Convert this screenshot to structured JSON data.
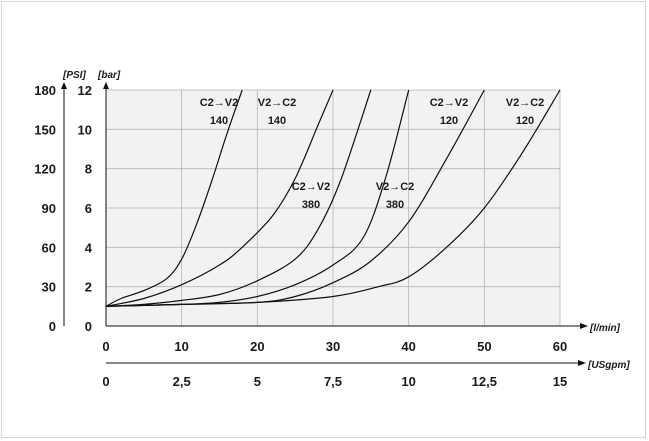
{
  "chart_data": {
    "type": "line",
    "title": "",
    "y_left_outer_label": "[PSI]",
    "y_left_outer_ticks": [
      "0",
      "30",
      "60",
      "90",
      "120",
      "150",
      "180"
    ],
    "y_left_inner_label": "[bar]",
    "y_left_inner_ticks": [
      "0",
      "2",
      "4",
      "6",
      "8",
      "10",
      "12"
    ],
    "x_primary_label": "[l/min]",
    "x_primary_ticks": [
      "0",
      "10",
      "20",
      "30",
      "40",
      "50",
      "60"
    ],
    "x_secondary_label": "[USgpm]",
    "x_secondary_ticks": [
      "0",
      "2,5",
      "5",
      "7,5",
      "10",
      "12,5",
      "15"
    ],
    "xlim": [
      0,
      60
    ],
    "ylim": [
      0,
      12
    ],
    "grid": true,
    "background": "#f2f2f2",
    "series": [
      {
        "name": "C2→V2 140",
        "line1": "C2→V2",
        "line2": "140",
        "x": [
          0,
          2,
          5,
          8,
          10,
          12,
          14,
          16,
          18
        ],
        "y": [
          1,
          1.4,
          1.8,
          2.4,
          3.4,
          5.2,
          7.4,
          9.8,
          12
        ]
      },
      {
        "name": "V2→C2 140",
        "line1": "V2→C2",
        "line2": "140",
        "x": [
          0,
          5,
          10,
          15,
          18,
          22,
          25,
          28,
          30
        ],
        "y": [
          1,
          1.4,
          2.1,
          3.1,
          4.0,
          5.6,
          7.5,
          10.2,
          12
        ]
      },
      {
        "name": "C2→V2 380",
        "line1": "C2→V2",
        "line2": "380",
        "x": [
          0,
          5,
          10,
          15,
          20,
          25,
          28,
          31,
          35
        ],
        "y": [
          1,
          1.1,
          1.3,
          1.6,
          2.3,
          3.4,
          4.9,
          7.4,
          12
        ]
      },
      {
        "name": "V2→C2 380",
        "line1": "V2→C2",
        "line2": "380",
        "x": [
          0,
          10,
          15,
          20,
          25,
          30,
          34,
          37,
          40
        ],
        "y": [
          1,
          1.1,
          1.2,
          1.5,
          2.1,
          3.1,
          4.5,
          7.6,
          12
        ]
      },
      {
        "name": "C2→V2 120",
        "line1": "C2→V2",
        "line2": "120",
        "x": [
          0,
          10,
          20,
          25,
          30,
          35,
          40,
          45,
          50
        ],
        "y": [
          1,
          1.1,
          1.2,
          1.5,
          2.2,
          3.3,
          5.3,
          8.5,
          12
        ]
      },
      {
        "name": "V2→C2 120",
        "line1": "V2→C2",
        "line2": "120",
        "x": [
          0,
          10,
          20,
          30,
          36,
          40,
          45,
          50,
          55,
          60
        ],
        "y": [
          1,
          1.1,
          1.2,
          1.5,
          2.0,
          2.5,
          4.0,
          6.0,
          8.8,
          12
        ]
      }
    ]
  }
}
